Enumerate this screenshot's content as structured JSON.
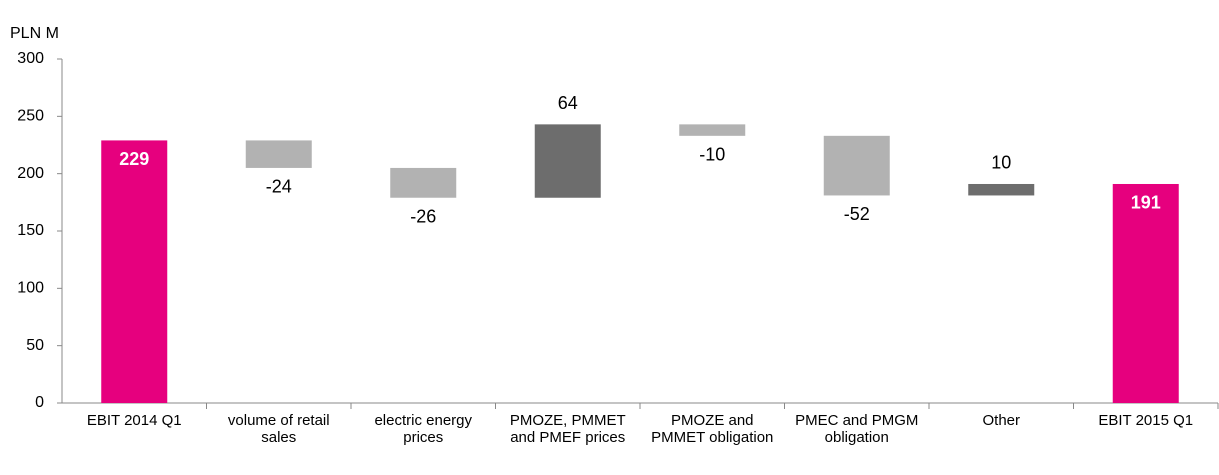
{
  "chart_data": {
    "type": "waterfall",
    "y_label": "PLN M",
    "categories": [
      "EBIT 2014 Q1",
      "volume of retail sales",
      "electric energy prices",
      "PMOZE, PMMET and PMEF prices",
      "PMOZE and PMMET obligation",
      "PMEC and PMGM obligation",
      "Other",
      "EBIT 2015 Q1"
    ],
    "values": [
      229,
      -24,
      -26,
      64,
      -10,
      -52,
      10,
      191
    ],
    "totals": [
      0,
      7
    ],
    "colors": {
      "total": "#e6007e",
      "increase": "#6d6d6d",
      "decrease": "#b2b2b2"
    },
    "ylim": [
      0,
      300
    ],
    "yticks": [
      0,
      50,
      100,
      150,
      200,
      250,
      300
    ],
    "grid": false
  }
}
